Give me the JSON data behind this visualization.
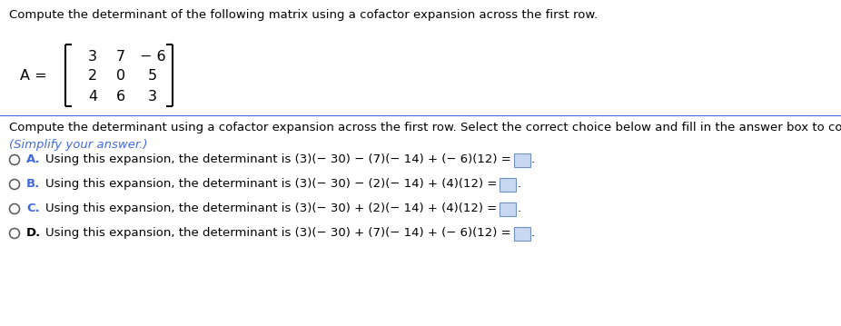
{
  "title": "Compute the determinant of the following matrix using a cofactor expansion across the first row.",
  "matrix_rows": [
    [
      "3",
      "7",
      "− 6"
    ],
    [
      "2",
      "0",
      "5"
    ],
    [
      "4",
      "6",
      "3"
    ]
  ],
  "instruction": "Compute the determinant using a cofactor expansion across the first row. Select the correct choice below and fill in the answer box to complete your choice.",
  "simplify_note": "(Simplify your answer.)",
  "options": [
    {
      "letter": "A.",
      "text": "Using this expansion, the determinant is (3)(− 30) − (7)(− 14) + (− 6)(12) ="
    },
    {
      "letter": "B.",
      "text": "Using this expansion, the determinant is (3)(− 30) − (2)(− 14) + (4)(12) ="
    },
    {
      "letter": "C.",
      "text": "Using this expansion, the determinant is (3)(− 30) + (2)(− 14) + (4)(12) ="
    },
    {
      "letter": "D.",
      "text": "Using this expansion, the determinant is (3)(− 30) + (7)(− 14) + (− 6)(12) ="
    }
  ],
  "background_color": "#ffffff",
  "text_color": "#000000",
  "simplify_color": "#4169e1",
  "separator_color": "#4169e1",
  "box_facecolor": "#c8d8f0",
  "box_edgecolor": "#7090c0",
  "title_fontsize": 9.5,
  "matrix_fontsize": 11.5,
  "matrix_label_fontsize": 11.5,
  "instruction_fontsize": 9.5,
  "option_fontsize": 9.5,
  "simplify_fontsize": 9.5
}
